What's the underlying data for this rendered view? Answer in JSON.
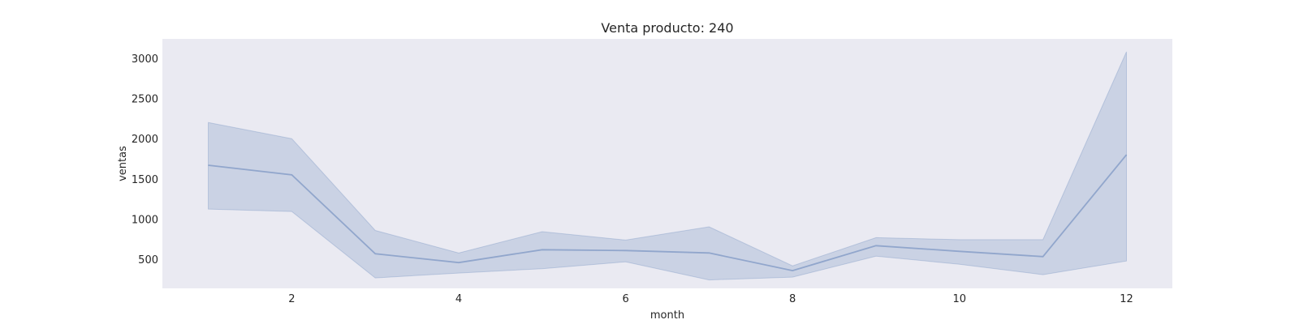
{
  "chart_data": {
    "type": "line",
    "title": "Venta producto: 240",
    "xlabel": "month",
    "ylabel": "ventas",
    "x": [
      1,
      2,
      3,
      4,
      5,
      6,
      7,
      8,
      9,
      10,
      11,
      12
    ],
    "series": [
      {
        "values": [
          1670,
          1550,
          570,
          460,
          620,
          610,
          580,
          360,
          670,
          600,
          535,
          1800
        ],
        "ci_upper": [
          2200,
          2000,
          860,
          580,
          845,
          740,
          905,
          420,
          770,
          745,
          745,
          3080
        ],
        "ci_lower": [
          1125,
          1095,
          270,
          330,
          385,
          470,
          245,
          280,
          540,
          440,
          310,
          480
        ]
      }
    ],
    "xlim": [
      0.45,
      12.55
    ],
    "ylim": [
      140,
      3240
    ],
    "xticks": [
      2,
      4,
      6,
      8,
      10,
      12
    ],
    "yticks": [
      500,
      1000,
      1500,
      2000,
      2500,
      3000
    ],
    "grid": false,
    "colors": {
      "background": "#eaeaf2",
      "line": "#4c72b0",
      "band": "#4c72b0"
    }
  }
}
